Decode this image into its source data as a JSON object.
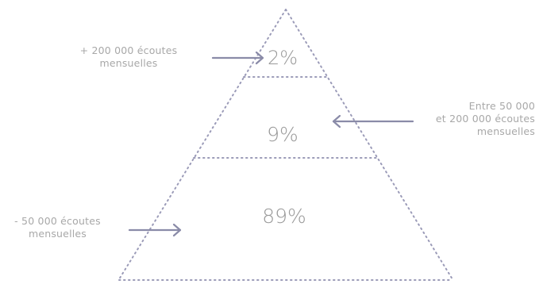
{
  "diagram": {
    "tiers": [
      {
        "id": "top",
        "percent": "2%"
      },
      {
        "id": "middle",
        "percent": "9%"
      },
      {
        "id": "bottom",
        "percent": "89%"
      }
    ],
    "labels": {
      "top": {
        "line1": "+ 200 000 écoutes",
        "line2": "mensuelles"
      },
      "middle": {
        "line1": "Entre 50 000",
        "line2": "et 200 000 écoutes",
        "line3": "mensuelles"
      },
      "bottom": {
        "line1": "- 50 000 écoutes",
        "line2": "mensuelles"
      }
    },
    "colors": {
      "outline": "#9b9bb8",
      "arrow": "#8a8ba8",
      "text": "#a8a8a8"
    }
  }
}
